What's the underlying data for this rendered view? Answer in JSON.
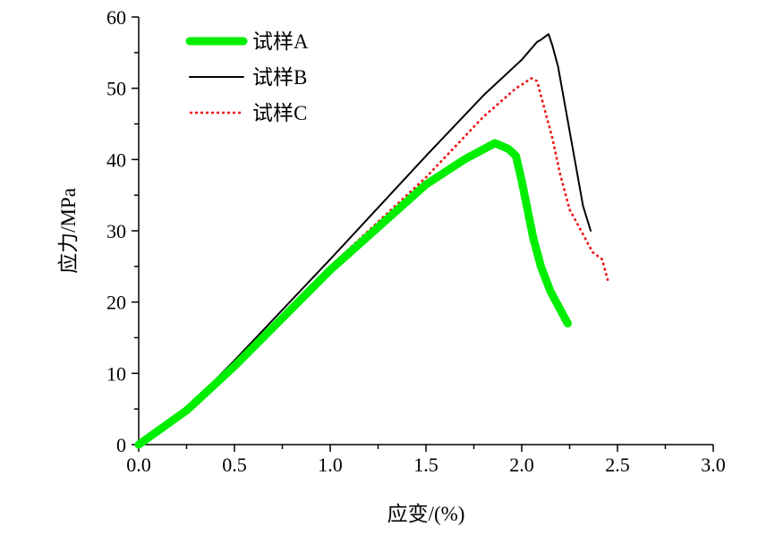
{
  "chart_data": {
    "type": "line",
    "title": "",
    "xlabel": "应变/(%)",
    "ylabel": "应力/MPa",
    "xlim": [
      0,
      3.0
    ],
    "ylim": [
      0,
      60
    ],
    "xticks": [
      "0.0",
      "0.5",
      "1.0",
      "1.5",
      "2.0",
      "2.5",
      "3.0"
    ],
    "yticks": [
      "0",
      "10",
      "20",
      "30",
      "40",
      "50",
      "60"
    ],
    "grid": false,
    "legend_position": "top-left",
    "series": [
      {
        "name": "试样A",
        "color": "#00ee00",
        "style": "thick-solid",
        "x": [
          0,
          0.25,
          0.5,
          1.0,
          1.5,
          1.7,
          1.86,
          1.93,
          1.97,
          2.0,
          2.03,
          2.06,
          2.1,
          2.15,
          2.2,
          2.24
        ],
        "y": [
          0,
          4.8,
          11,
          24.5,
          36.5,
          40,
          42.3,
          41.5,
          40.5,
          37,
          33,
          29,
          25,
          21.5,
          19,
          17
        ]
      },
      {
        "name": "试样B",
        "color": "#000000",
        "style": "solid",
        "x": [
          0,
          0.25,
          0.5,
          1.0,
          1.5,
          1.8,
          2.0,
          2.08,
          2.1,
          2.12,
          2.14,
          2.16,
          2.19,
          2.23,
          2.27,
          2.32,
          2.36
        ],
        "y": [
          0,
          5,
          11.8,
          26,
          40.5,
          49,
          54,
          56.5,
          56.8,
          57.2,
          57.6,
          56,
          53,
          47,
          41,
          33.5,
          30
        ]
      },
      {
        "name": "试样C",
        "color": "#ee1111",
        "style": "dotted",
        "x": [
          0,
          0.25,
          0.5,
          1.0,
          1.5,
          1.8,
          1.97,
          2.0,
          2.05,
          2.08,
          2.12,
          2.16,
          2.2,
          2.25,
          2.31,
          2.37,
          2.42,
          2.45
        ],
        "y": [
          0,
          5,
          11,
          25,
          37.5,
          46,
          50,
          50.5,
          51.4,
          51,
          47,
          43,
          38,
          33,
          30,
          27,
          26,
          23
        ]
      }
    ]
  }
}
